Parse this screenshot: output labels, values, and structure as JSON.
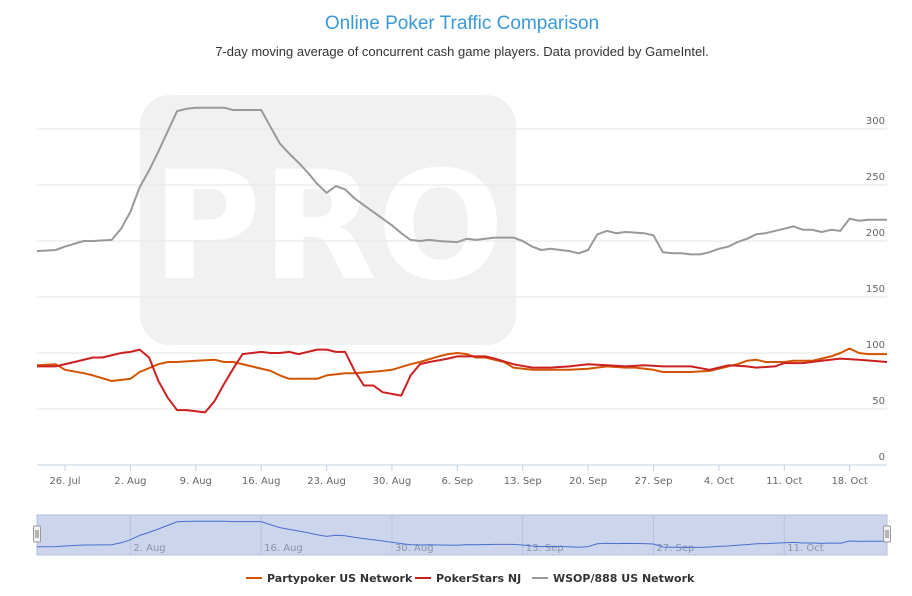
{
  "chart_data": {
    "type": "line",
    "title": "Online Poker Traffic Comparison",
    "subtitle": "7-day moving average of concurrent cash game players. Data provided by GameIntel.",
    "watermark": "PRO",
    "ylim": [
      0,
      350
    ],
    "yticks": [
      0,
      50,
      100,
      150,
      200,
      250,
      300
    ],
    "x_start": "2016-07-23",
    "x_end": "2016-10-22",
    "x_ticks": [
      {
        "date": "2016-07-26",
        "label": "26. Jul"
      },
      {
        "date": "2016-08-02",
        "label": "2. Aug"
      },
      {
        "date": "2016-08-09",
        "label": "9. Aug"
      },
      {
        "date": "2016-08-16",
        "label": "16. Aug"
      },
      {
        "date": "2016-08-23",
        "label": "23. Aug"
      },
      {
        "date": "2016-08-30",
        "label": "30. Aug"
      },
      {
        "date": "2016-09-06",
        "label": "6. Sep"
      },
      {
        "date": "2016-09-13",
        "label": "13. Sep"
      },
      {
        "date": "2016-09-20",
        "label": "20. Sep"
      },
      {
        "date": "2016-09-27",
        "label": "27. Sep"
      },
      {
        "date": "2016-10-04",
        "label": "4. Oct"
      },
      {
        "date": "2016-10-11",
        "label": "11. Oct"
      },
      {
        "date": "2016-10-18",
        "label": "18. Oct"
      }
    ],
    "navigator_ticks": [
      {
        "date": "2016-08-02",
        "label": "2. Aug"
      },
      {
        "date": "2016-08-16",
        "label": "16. Aug"
      },
      {
        "date": "2016-08-30",
        "label": "30. Aug"
      },
      {
        "date": "2016-09-13",
        "label": "13. Sep"
      },
      {
        "date": "2016-09-27",
        "label": "27. Sep"
      },
      {
        "date": "2016-10-11",
        "label": "11. Oct"
      }
    ],
    "grid": true,
    "legend_position": "bottom-center",
    "series": [
      {
        "name": "Partypoker US Network",
        "color": "#d35400",
        "points": [
          [
            "2016-07-23",
            89
          ],
          [
            "2016-07-25",
            90
          ],
          [
            "2016-07-26",
            85
          ],
          [
            "2016-07-28",
            82
          ],
          [
            "2016-07-29",
            80
          ],
          [
            "2016-07-31",
            75
          ],
          [
            "2016-08-01",
            76
          ],
          [
            "2016-08-02",
            77
          ],
          [
            "2016-08-03",
            83
          ],
          [
            "2016-08-05",
            90
          ],
          [
            "2016-08-06",
            92
          ],
          [
            "2016-08-07",
            92
          ],
          [
            "2016-08-09",
            93
          ],
          [
            "2016-08-11",
            94
          ],
          [
            "2016-08-12",
            92
          ],
          [
            "2016-08-13",
            92
          ],
          [
            "2016-08-15",
            88
          ],
          [
            "2016-08-17",
            84
          ],
          [
            "2016-08-18",
            80
          ],
          [
            "2016-08-19",
            77
          ],
          [
            "2016-08-21",
            77
          ],
          [
            "2016-08-22",
            77
          ],
          [
            "2016-08-23",
            80
          ],
          [
            "2016-08-25",
            82
          ],
          [
            "2016-08-26",
            82
          ],
          [
            "2016-08-29",
            84
          ],
          [
            "2016-08-30",
            85
          ],
          [
            "2016-09-01",
            90
          ],
          [
            "2016-09-02",
            92
          ],
          [
            "2016-09-04",
            97
          ],
          [
            "2016-09-05",
            99
          ],
          [
            "2016-09-06",
            100
          ],
          [
            "2016-09-07",
            99
          ],
          [
            "2016-09-08",
            96
          ],
          [
            "2016-09-09",
            96
          ],
          [
            "2016-09-11",
            92
          ],
          [
            "2016-09-12",
            87
          ],
          [
            "2016-09-14",
            85
          ],
          [
            "2016-09-16",
            85
          ],
          [
            "2016-09-18",
            85
          ],
          [
            "2016-09-20",
            86
          ],
          [
            "2016-09-22",
            88
          ],
          [
            "2016-09-24",
            87
          ],
          [
            "2016-09-25",
            87
          ],
          [
            "2016-09-27",
            85
          ],
          [
            "2016-09-28",
            83
          ],
          [
            "2016-10-01",
            83
          ],
          [
            "2016-10-03",
            84
          ],
          [
            "2016-10-04",
            86
          ],
          [
            "2016-10-05",
            88
          ],
          [
            "2016-10-06",
            90
          ],
          [
            "2016-10-07",
            93
          ],
          [
            "2016-10-08",
            94
          ],
          [
            "2016-10-09",
            92
          ],
          [
            "2016-10-11",
            92
          ],
          [
            "2016-10-12",
            93
          ],
          [
            "2016-10-14",
            93
          ],
          [
            "2016-10-15",
            95
          ],
          [
            "2016-10-16",
            97
          ],
          [
            "2016-10-17",
            100
          ],
          [
            "2016-10-18",
            104
          ],
          [
            "2016-10-19",
            100
          ],
          [
            "2016-10-20",
            99
          ],
          [
            "2016-10-22",
            99
          ]
        ]
      },
      {
        "name": "PokerStars NJ",
        "color": "#cc2020",
        "points": [
          [
            "2016-07-23",
            88
          ],
          [
            "2016-07-25",
            88
          ],
          [
            "2016-07-27",
            92
          ],
          [
            "2016-07-29",
            96
          ],
          [
            "2016-07-30",
            96
          ],
          [
            "2016-08-01",
            100
          ],
          [
            "2016-08-02",
            101
          ],
          [
            "2016-08-03",
            103
          ],
          [
            "2016-08-04",
            96
          ],
          [
            "2016-08-05",
            75
          ],
          [
            "2016-08-06",
            60
          ],
          [
            "2016-08-07",
            49
          ],
          [
            "2016-08-08",
            49
          ],
          [
            "2016-08-09",
            48
          ],
          [
            "2016-08-10",
            47
          ],
          [
            "2016-08-11",
            57
          ],
          [
            "2016-08-12",
            72
          ],
          [
            "2016-08-13",
            86
          ],
          [
            "2016-08-14",
            99
          ],
          [
            "2016-08-15",
            100
          ],
          [
            "2016-08-16",
            101
          ],
          [
            "2016-08-17",
            100
          ],
          [
            "2016-08-18",
            100
          ],
          [
            "2016-08-19",
            101
          ],
          [
            "2016-08-20",
            99
          ],
          [
            "2016-08-22",
            103
          ],
          [
            "2016-08-23",
            103
          ],
          [
            "2016-08-24",
            101
          ],
          [
            "2016-08-25",
            101
          ],
          [
            "2016-08-26",
            84
          ],
          [
            "2016-08-27",
            71
          ],
          [
            "2016-08-28",
            71
          ],
          [
            "2016-08-29",
            65
          ],
          [
            "2016-08-31",
            62
          ],
          [
            "2016-09-01",
            80
          ],
          [
            "2016-09-02",
            90
          ],
          [
            "2016-09-03",
            92
          ],
          [
            "2016-09-05",
            95
          ],
          [
            "2016-09-06",
            97
          ],
          [
            "2016-09-07",
            97
          ],
          [
            "2016-09-09",
            97
          ],
          [
            "2016-09-10",
            95
          ],
          [
            "2016-09-12",
            90
          ],
          [
            "2016-09-14",
            87
          ],
          [
            "2016-09-16",
            87
          ],
          [
            "2016-09-18",
            88
          ],
          [
            "2016-09-20",
            90
          ],
          [
            "2016-09-22",
            89
          ],
          [
            "2016-09-24",
            88
          ],
          [
            "2016-09-26",
            89
          ],
          [
            "2016-09-28",
            88
          ],
          [
            "2016-09-30",
            88
          ],
          [
            "2016-10-01",
            88
          ],
          [
            "2016-10-03",
            85
          ],
          [
            "2016-10-04",
            87
          ],
          [
            "2016-10-05",
            89
          ],
          [
            "2016-10-07",
            88
          ],
          [
            "2016-10-08",
            87
          ],
          [
            "2016-10-10",
            88
          ],
          [
            "2016-10-11",
            91
          ],
          [
            "2016-10-13",
            91
          ],
          [
            "2016-10-15",
            93
          ],
          [
            "2016-10-17",
            95
          ],
          [
            "2016-10-19",
            94
          ],
          [
            "2016-10-22",
            92
          ]
        ]
      },
      {
        "name": "WSOP/888 US Network",
        "color": "#999999",
        "points": [
          [
            "2016-07-23",
            191
          ],
          [
            "2016-07-25",
            192
          ],
          [
            "2016-07-26",
            195
          ],
          [
            "2016-07-28",
            200
          ],
          [
            "2016-07-29",
            200
          ],
          [
            "2016-07-31",
            201
          ],
          [
            "2016-08-01",
            211
          ],
          [
            "2016-08-02",
            226
          ],
          [
            "2016-08-03",
            248
          ],
          [
            "2016-08-04",
            263
          ],
          [
            "2016-08-05",
            280
          ],
          [
            "2016-08-06",
            298
          ],
          [
            "2016-08-07",
            316
          ],
          [
            "2016-08-08",
            318
          ],
          [
            "2016-08-09",
            319
          ],
          [
            "2016-08-10",
            319
          ],
          [
            "2016-08-11",
            319
          ],
          [
            "2016-08-12",
            319
          ],
          [
            "2016-08-13",
            317
          ],
          [
            "2016-08-14",
            317
          ],
          [
            "2016-08-15",
            317
          ],
          [
            "2016-08-16",
            317
          ],
          [
            "2016-08-17",
            302
          ],
          [
            "2016-08-18",
            287
          ],
          [
            "2016-08-19",
            278
          ],
          [
            "2016-08-20",
            270
          ],
          [
            "2016-08-21",
            261
          ],
          [
            "2016-08-22",
            251
          ],
          [
            "2016-08-23",
            243
          ],
          [
            "2016-08-24",
            249
          ],
          [
            "2016-08-25",
            246
          ],
          [
            "2016-08-26",
            238
          ],
          [
            "2016-08-27",
            232
          ],
          [
            "2016-08-28",
            226
          ],
          [
            "2016-08-29",
            220
          ],
          [
            "2016-08-30",
            214
          ],
          [
            "2016-08-31",
            207
          ],
          [
            "2016-09-01",
            201
          ],
          [
            "2016-09-02",
            200
          ],
          [
            "2016-09-03",
            201
          ],
          [
            "2016-09-04",
            200
          ],
          [
            "2016-09-06",
            199
          ],
          [
            "2016-09-07",
            202
          ],
          [
            "2016-09-08",
            201
          ],
          [
            "2016-09-10",
            203
          ],
          [
            "2016-09-11",
            203
          ],
          [
            "2016-09-12",
            203
          ],
          [
            "2016-09-13",
            200
          ],
          [
            "2016-09-14",
            195
          ],
          [
            "2016-09-15",
            192
          ],
          [
            "2016-09-16",
            193
          ],
          [
            "2016-09-18",
            191
          ],
          [
            "2016-09-19",
            189
          ],
          [
            "2016-09-20",
            192
          ],
          [
            "2016-09-21",
            206
          ],
          [
            "2016-09-22",
            209
          ],
          [
            "2016-09-23",
            207
          ],
          [
            "2016-09-24",
            208
          ],
          [
            "2016-09-26",
            207
          ],
          [
            "2016-09-27",
            205
          ],
          [
            "2016-09-28",
            190
          ],
          [
            "2016-09-29",
            189
          ],
          [
            "2016-09-30",
            189
          ],
          [
            "2016-10-01",
            188
          ],
          [
            "2016-10-02",
            188
          ],
          [
            "2016-10-03",
            190
          ],
          [
            "2016-10-04",
            193
          ],
          [
            "2016-10-05",
            195
          ],
          [
            "2016-10-06",
            199
          ],
          [
            "2016-10-07",
            202
          ],
          [
            "2016-10-08",
            206
          ],
          [
            "2016-10-09",
            207
          ],
          [
            "2016-10-11",
            211
          ],
          [
            "2016-10-12",
            213
          ],
          [
            "2016-10-13",
            210
          ],
          [
            "2016-10-14",
            210
          ],
          [
            "2016-10-15",
            208
          ],
          [
            "2016-10-16",
            210
          ],
          [
            "2016-10-17",
            209
          ],
          [
            "2016-10-18",
            220
          ],
          [
            "2016-10-19",
            218
          ],
          [
            "2016-10-20",
            219
          ],
          [
            "2016-10-22",
            219
          ]
        ]
      }
    ]
  }
}
